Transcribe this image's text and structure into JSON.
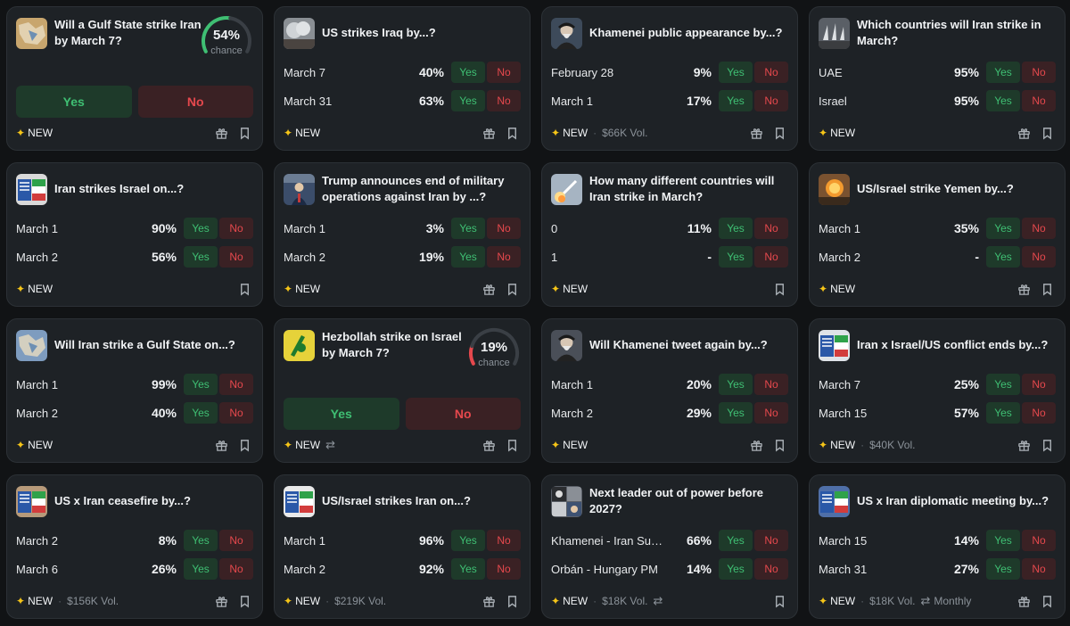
{
  "cards": [
    {
      "title": "Will a Gulf State strike Iran by March 7?",
      "type": "gauge",
      "gauge": {
        "value": "54%",
        "fraction": 0.54,
        "label": "chance",
        "color": "#3fbf73"
      },
      "yes_label": "Yes",
      "no_label": "No",
      "footer": {
        "new": "NEW",
        "vol": "",
        "gift": true
      },
      "thumb": {
        "icon": "map-photo",
        "bg": "#c8a66e"
      }
    },
    {
      "title": "US strikes Iraq by...?",
      "rows": [
        {
          "label": "March 7",
          "pct": "40%"
        },
        {
          "label": "March 31",
          "pct": "63%"
        }
      ],
      "footer": {
        "new": "NEW",
        "vol": "",
        "gift": true
      },
      "thumb": {
        "icon": "smoke-photo",
        "bg": "#8a8f94"
      }
    },
    {
      "title": "Khamenei public appearance by...?",
      "rows": [
        {
          "label": "February 28",
          "pct": "9%"
        },
        {
          "label": "March 1",
          "pct": "17%"
        }
      ],
      "footer": {
        "new": "NEW",
        "vol": "$66K Vol.",
        "gift": true
      },
      "thumb": {
        "icon": "portrait-photo",
        "bg": "#3d4a5a"
      }
    },
    {
      "title": "Which countries will Iran strike in March?",
      "rows": [
        {
          "label": "UAE",
          "pct": "95%"
        },
        {
          "label": "Israel",
          "pct": "95%"
        }
      ],
      "footer": {
        "new": "NEW",
        "vol": "",
        "gift": true
      },
      "thumb": {
        "icon": "missile-photo",
        "bg": "#5a5f66"
      }
    },
    {
      "title": "Iran strikes Israel on...?",
      "rows": [
        {
          "label": "March 1",
          "pct": "90%"
        },
        {
          "label": "March 2",
          "pct": "56%"
        }
      ],
      "footer": {
        "new": "NEW",
        "vol": "",
        "gift": false
      },
      "thumb": {
        "icon": "flags-photo",
        "bg": "#d9d9d9"
      }
    },
    {
      "title": "Trump announces end of military operations against Iran by ...?",
      "rows": [
        {
          "label": "March 1",
          "pct": "3%"
        },
        {
          "label": "March 2",
          "pct": "19%"
        }
      ],
      "footer": {
        "new": "NEW",
        "vol": "",
        "gift": true
      },
      "thumb": {
        "icon": "person-photo",
        "bg": "#3b4d6a"
      }
    },
    {
      "title": "How many different countries will Iran strike in March?",
      "rows": [
        {
          "label": "0",
          "pct": "11%"
        },
        {
          "label": "1",
          "pct": "-"
        }
      ],
      "footer": {
        "new": "NEW",
        "vol": "",
        "gift": false
      },
      "thumb": {
        "icon": "launch-photo",
        "bg": "#a6b4c2"
      }
    },
    {
      "title": "US/Israel strike Yemen by...?",
      "rows": [
        {
          "label": "March 1",
          "pct": "35%"
        },
        {
          "label": "March 2",
          "pct": "-"
        }
      ],
      "footer": {
        "new": "NEW",
        "vol": "",
        "gift": true
      },
      "thumb": {
        "icon": "explosion-photo",
        "bg": "#7a5230"
      }
    },
    {
      "title": "Will Iran strike a Gulf State on...?",
      "rows": [
        {
          "label": "March 1",
          "pct": "99%"
        },
        {
          "label": "March 2",
          "pct": "40%"
        }
      ],
      "footer": {
        "new": "NEW",
        "vol": "",
        "gift": true
      },
      "thumb": {
        "icon": "map-photo",
        "bg": "#7e9cbf"
      }
    },
    {
      "title": "Hezbollah strike on Israel by March 7?",
      "type": "gauge",
      "gauge": {
        "value": "19%",
        "fraction": 0.19,
        "label": "chance",
        "color": "#e5484d"
      },
      "yes_label": "Yes",
      "no_label": "No",
      "footer": {
        "new": "NEW",
        "vol": "",
        "repeat": true,
        "gift": true
      },
      "thumb": {
        "icon": "hezbollah-flag",
        "bg": "#e6d23a"
      }
    },
    {
      "title": "Will Khamenei tweet again by...?",
      "rows": [
        {
          "label": "March 1",
          "pct": "20%"
        },
        {
          "label": "March 2",
          "pct": "29%"
        }
      ],
      "footer": {
        "new": "NEW",
        "vol": "",
        "gift": true
      },
      "thumb": {
        "icon": "portrait-photo",
        "bg": "#4a4f58"
      }
    },
    {
      "title": "Iran x Israel/US conflict ends by...?",
      "rows": [
        {
          "label": "March 7",
          "pct": "25%"
        },
        {
          "label": "March 15",
          "pct": "57%"
        }
      ],
      "footer": {
        "new": "NEW",
        "vol": "$40K Vol.",
        "gift": true
      },
      "thumb": {
        "icon": "flags-photo",
        "bg": "#dfe3e8"
      }
    },
    {
      "title": "US x Iran ceasefire by...?",
      "rows": [
        {
          "label": "March 2",
          "pct": "8%"
        },
        {
          "label": "March 6",
          "pct": "26%"
        }
      ],
      "footer": {
        "new": "NEW",
        "vol": "$156K Vol.",
        "gift": true
      },
      "thumb": {
        "icon": "flags-photo",
        "bg": "#b79a7a"
      }
    },
    {
      "title": "US/Israel strikes Iran on...?",
      "rows": [
        {
          "label": "March 1",
          "pct": "96%"
        },
        {
          "label": "March 2",
          "pct": "92%"
        }
      ],
      "footer": {
        "new": "NEW",
        "vol": "$219K Vol.",
        "gift": true
      },
      "thumb": {
        "icon": "flags-photo",
        "bg": "#e9e9e9"
      }
    },
    {
      "title": "Next leader out of power before 2027?",
      "rows": [
        {
          "label": "Khamenei - Iran Sup...",
          "pct": "66%"
        },
        {
          "label": "Orbán - Hungary PM",
          "pct": "14%"
        }
      ],
      "footer": {
        "new": "NEW",
        "vol": "$18K Vol.",
        "repeat": true,
        "gift": false
      },
      "thumb": {
        "icon": "collage-photo",
        "bg": "#5b6068"
      }
    },
    {
      "title": "US x Iran diplomatic meeting by...?",
      "rows": [
        {
          "label": "March 15",
          "pct": "14%"
        },
        {
          "label": "March 31",
          "pct": "27%"
        }
      ],
      "footer": {
        "new": "NEW",
        "vol": "$18K Vol.",
        "repeat": true,
        "monthly": "Monthly",
        "gift": true
      },
      "thumb": {
        "icon": "flags-photo",
        "bg": "#4f6fa8"
      }
    }
  ],
  "buttons": {
    "yes": "Yes",
    "no": "No"
  },
  "footer_sep": "·"
}
